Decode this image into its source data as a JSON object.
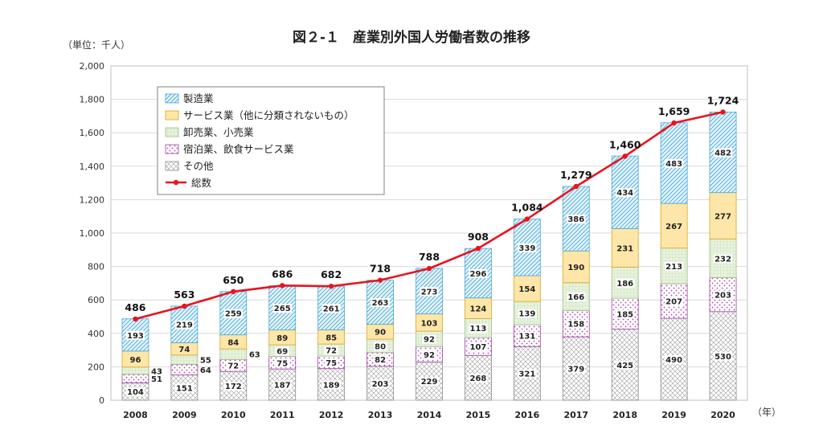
{
  "chart_data": {
    "type": "bar",
    "title": "図２-１　産業別外国人労働者数の推移",
    "unit_label": "（単位：千人）",
    "xlabel_suffix": "（年）",
    "ylim": [
      0,
      2000
    ],
    "yticks": [
      0,
      200,
      400,
      600,
      800,
      1000,
      1200,
      1400,
      1600,
      1800,
      2000
    ],
    "categories": [
      "2008",
      "2009",
      "2010",
      "2011",
      "2012",
      "2013",
      "2014",
      "2015",
      "2016",
      "2017",
      "2018",
      "2019",
      "2020"
    ],
    "series": [
      {
        "name": "その他",
        "pattern": "crosshatch",
        "color": "#c8c8c8",
        "values": [
          104,
          151,
          172,
          187,
          189,
          203,
          229,
          268,
          321,
          379,
          425,
          490,
          530
        ]
      },
      {
        "name": "宿泊業、飲食サービス業",
        "pattern": "dots",
        "color": "#c060c0",
        "values": [
          51,
          64,
          72,
          75,
          75,
          82,
          92,
          107,
          131,
          158,
          185,
          207,
          203
        ]
      },
      {
        "name": "卸売業、小売業",
        "pattern": "grid",
        "color": "#e2efd9",
        "values": [
          43,
          55,
          63,
          69,
          72,
          80,
          92,
          113,
          139,
          166,
          186,
          213,
          232
        ]
      },
      {
        "name": "サービス業（他に分類されないもの）",
        "pattern": "solid",
        "color": "#fde6a8",
        "values": [
          96,
          74,
          84,
          89,
          85,
          90,
          103,
          124,
          154,
          190,
          231,
          267,
          277
        ]
      },
      {
        "name": "製造業",
        "pattern": "diagonal",
        "color": "#cfeaf7",
        "values": [
          193,
          219,
          259,
          265,
          261,
          263,
          273,
          296,
          339,
          386,
          434,
          483,
          482
        ]
      }
    ],
    "total": {
      "name": "総数",
      "color": "#e8141e",
      "values": [
        486,
        563,
        650,
        686,
        682,
        718,
        788,
        908,
        1084,
        1279,
        1460,
        1659,
        1724
      ]
    },
    "legend_order": [
      "製造業",
      "サービス業（他に分類されないもの）",
      "卸売業、小売業",
      "宿泊業、飲食サービス業",
      "その他",
      "総数"
    ],
    "legend_position": "top-left"
  }
}
